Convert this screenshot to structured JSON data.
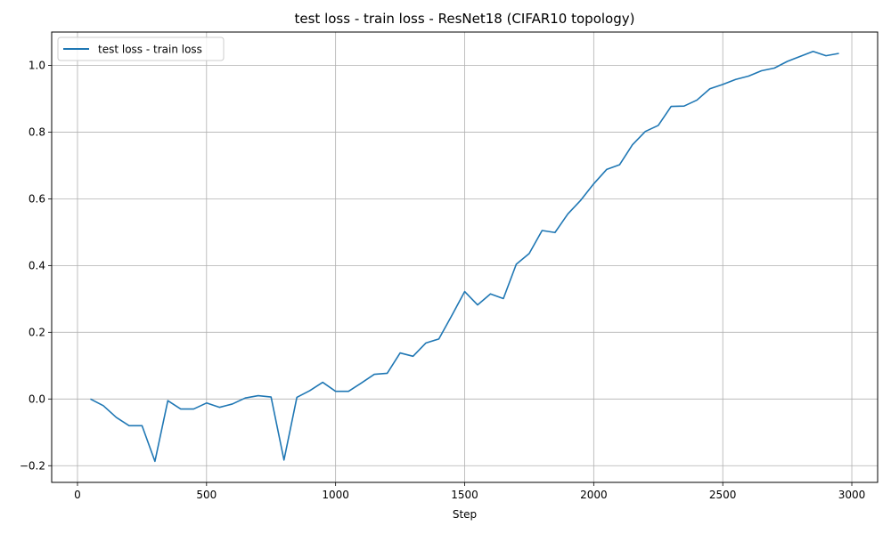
{
  "chart_data": {
    "type": "line",
    "title": "test loss - train loss - ResNet18 (CIFAR10 topology)",
    "xlabel": "Step",
    "ylabel": "",
    "xlim": [
      -100,
      3100
    ],
    "ylim": [
      -0.25,
      1.1
    ],
    "xticks": [
      0,
      500,
      1000,
      1500,
      2000,
      2500,
      3000
    ],
    "yticks": [
      -0.2,
      0.0,
      0.2,
      0.4,
      0.6,
      0.8,
      1.0
    ],
    "xtick_labels": [
      "0",
      "500",
      "1000",
      "1500",
      "2000",
      "2500",
      "3000"
    ],
    "ytick_labels": [
      "−0.2",
      "0.0",
      "0.2",
      "0.4",
      "0.6",
      "0.8",
      "1.0"
    ],
    "grid": true,
    "legend_position": "top-left",
    "series": [
      {
        "name": "test loss - train loss",
        "color": "#1f77b4",
        "x": [
          50,
          100,
          150,
          200,
          250,
          300,
          350,
          400,
          450,
          500,
          550,
          600,
          650,
          700,
          750,
          800,
          850,
          900,
          950,
          1000,
          1050,
          1100,
          1150,
          1200,
          1250,
          1300,
          1350,
          1400,
          1450,
          1500,
          1550,
          1600,
          1650,
          1700,
          1750,
          1800,
          1850,
          1900,
          1950,
          2000,
          2050,
          2100,
          2150,
          2200,
          2250,
          2300,
          2350,
          2400,
          2450,
          2500,
          2550,
          2600,
          2650,
          2700,
          2750,
          2800,
          2850,
          2900,
          2950
        ],
        "y": [
          0.0,
          -0.02,
          -0.055,
          -0.08,
          -0.08,
          -0.187,
          -0.005,
          -0.03,
          -0.03,
          -0.012,
          -0.025,
          -0.015,
          0.003,
          0.01,
          0.006,
          -0.183,
          0.005,
          0.025,
          0.05,
          0.023,
          0.023,
          0.048,
          0.074,
          0.077,
          0.138,
          0.128,
          0.168,
          0.18,
          0.25,
          0.322,
          0.282,
          0.315,
          0.301,
          0.404,
          0.436,
          0.505,
          0.499,
          0.555,
          0.596,
          0.645,
          0.688,
          0.702,
          0.762,
          0.802,
          0.82,
          0.877,
          0.878,
          0.896,
          0.93,
          0.943,
          0.958,
          0.968,
          0.984,
          0.992,
          1.012,
          1.027,
          1.042,
          1.029,
          1.036
        ]
      }
    ]
  }
}
